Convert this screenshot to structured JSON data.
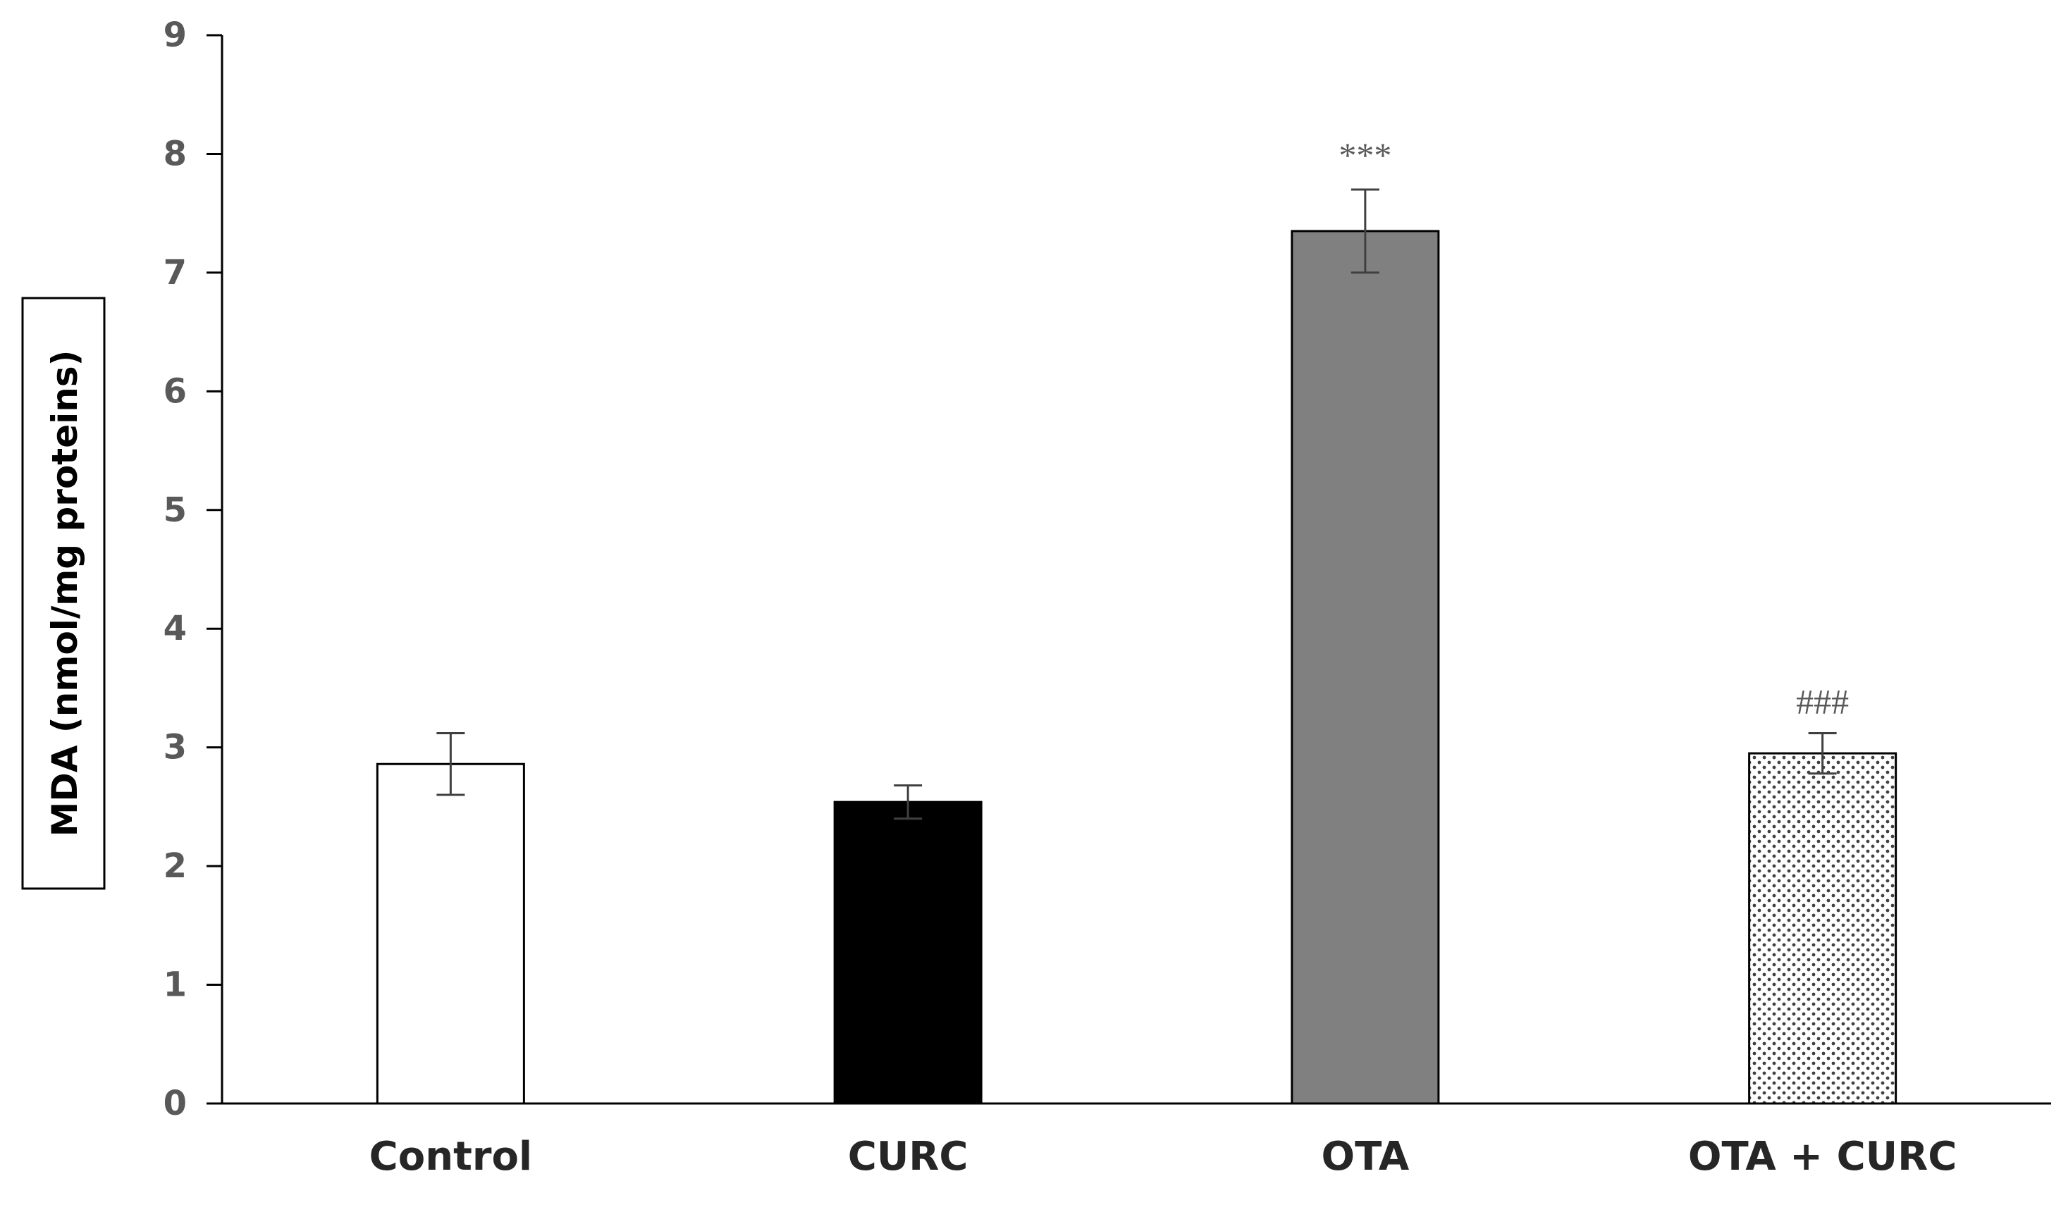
{
  "chart_data": {
    "type": "bar",
    "title": "",
    "xlabel": "",
    "ylabel": "MDA (nmol/mg proteins)",
    "ylim": [
      0,
      9
    ],
    "yticks": [
      0,
      1,
      2,
      3,
      4,
      5,
      6,
      7,
      8,
      9
    ],
    "categories": [
      "Control",
      "CURC",
      "OTA",
      "OTA + CURC"
    ],
    "values": [
      2.86,
      2.54,
      7.35,
      2.95
    ],
    "errors": [
      0.26,
      0.14,
      0.35,
      0.17
    ],
    "annotations": [
      "",
      "",
      "***",
      "###"
    ],
    "bar_fills": [
      "white",
      "black",
      "gray",
      "dotted"
    ],
    "colors": {
      "white": "#ffffff",
      "black": "#000000",
      "gray": "#808080",
      "dotted_bg": "#ffffff",
      "dotted_dot": "#404040",
      "axis": "#000000",
      "error": "#404040"
    },
    "grid": false,
    "legend": "none"
  }
}
